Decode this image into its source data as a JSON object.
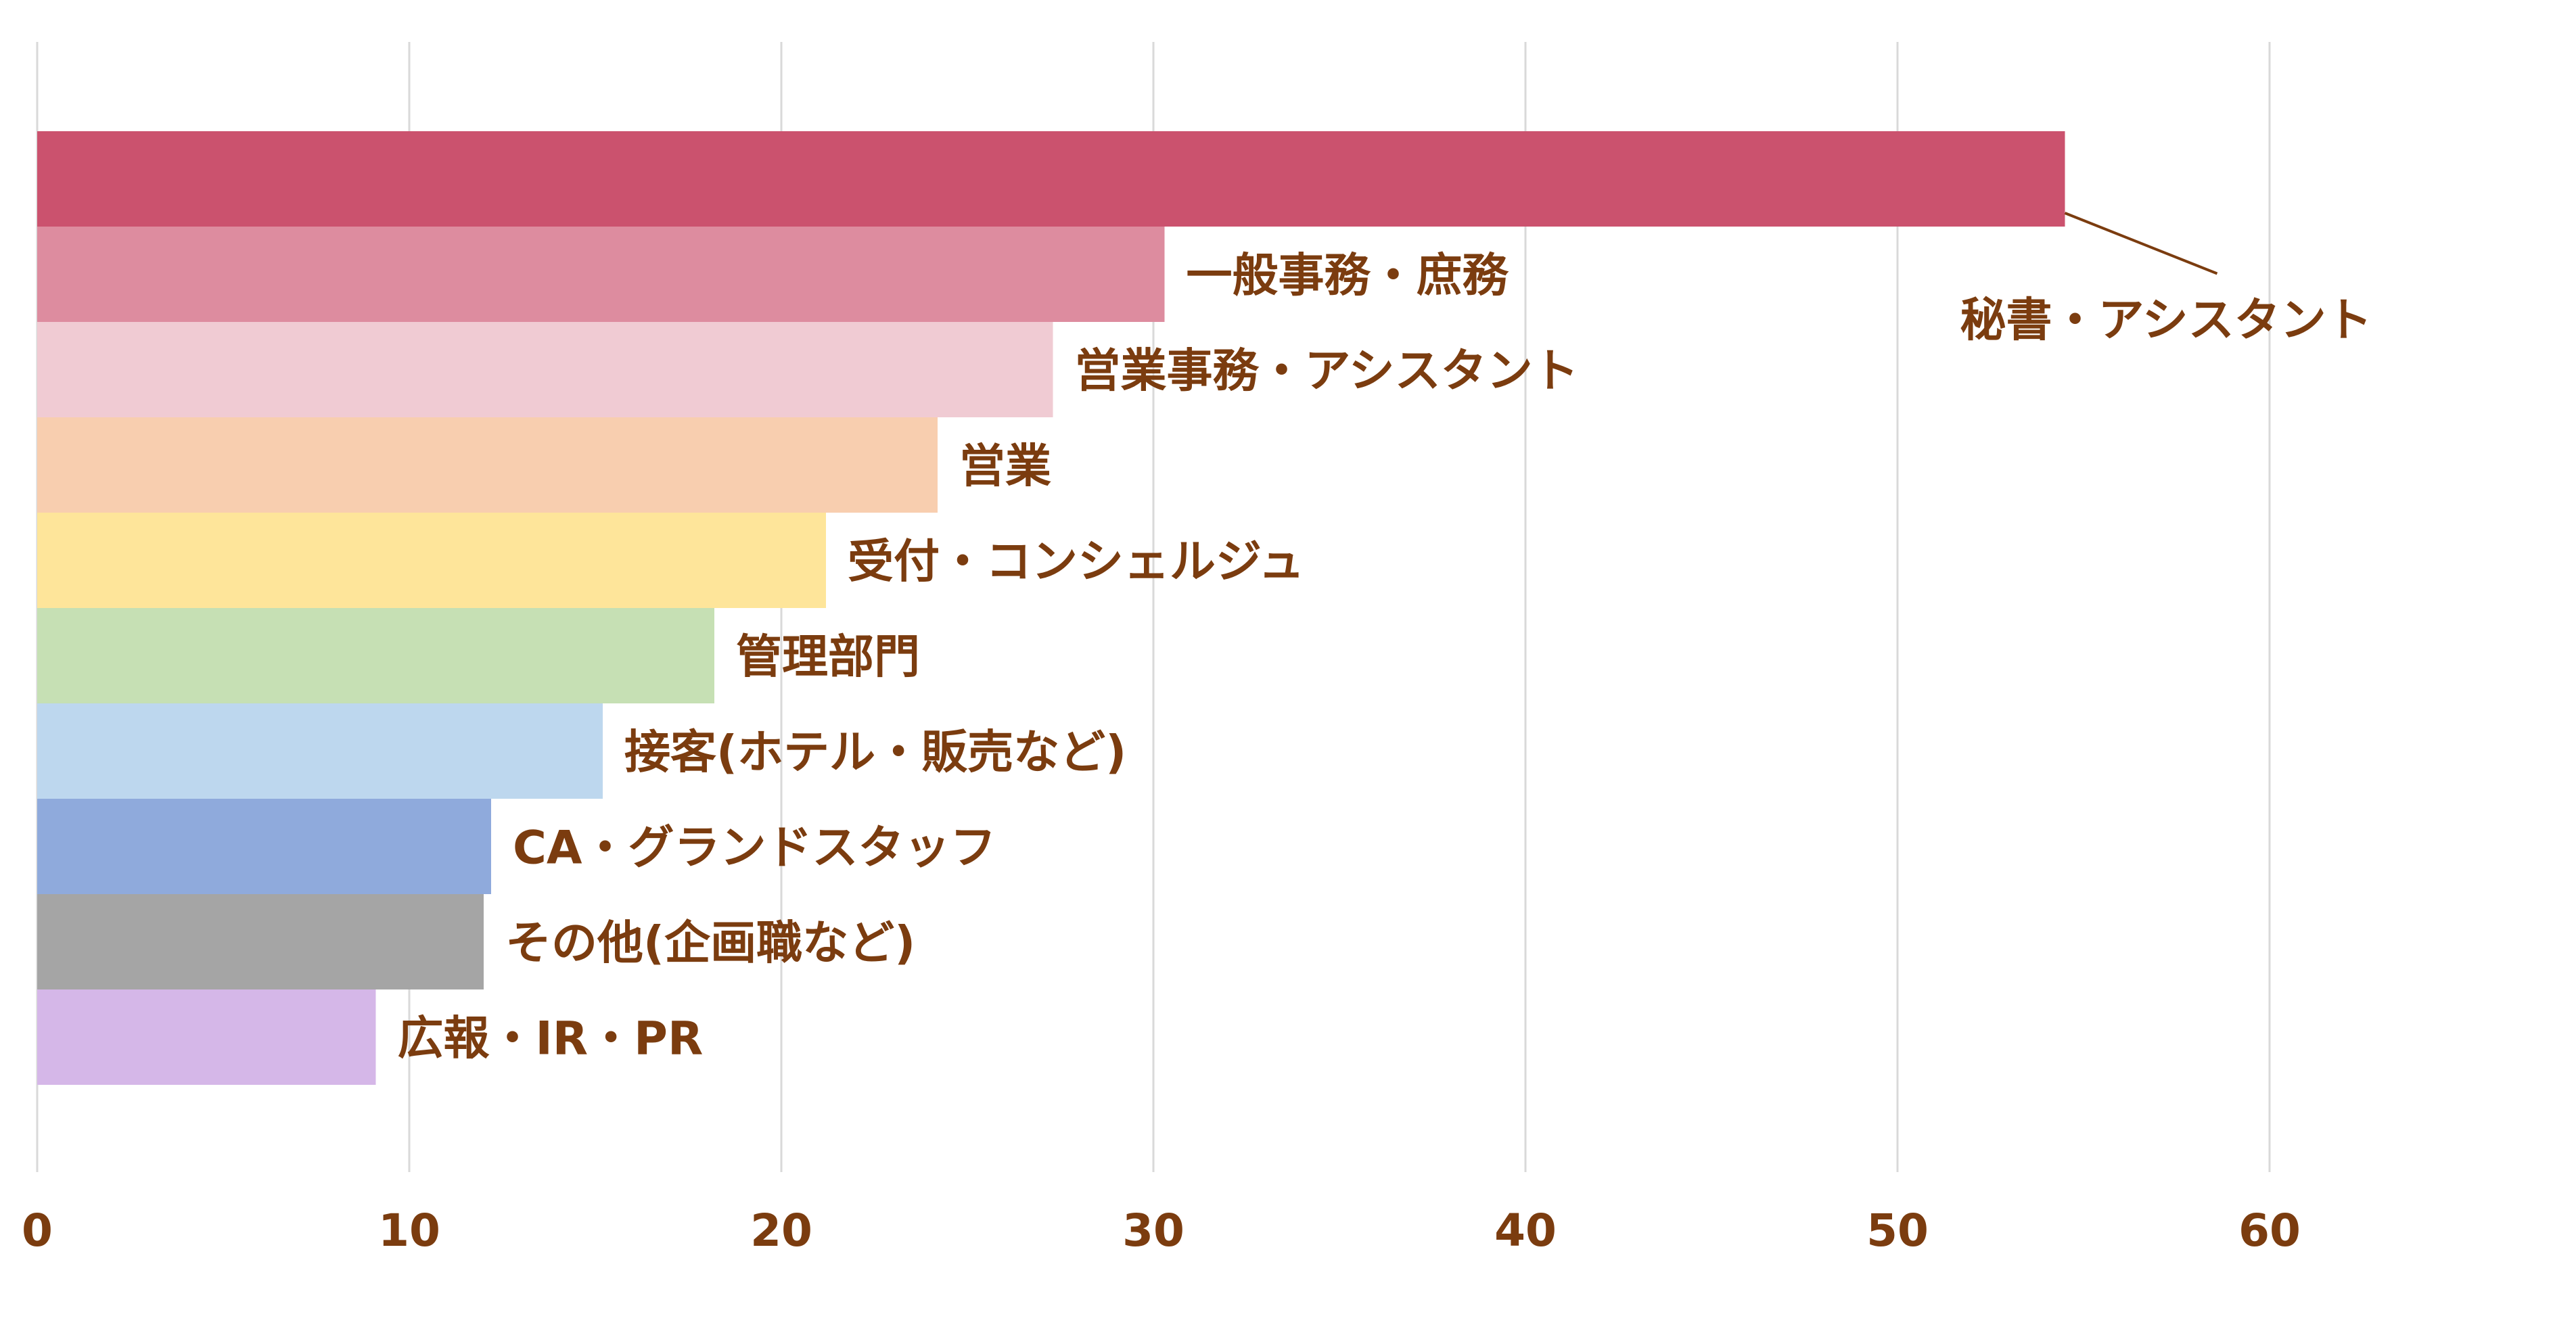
{
  "chart_data": {
    "type": "bar",
    "orientation": "horizontal",
    "categories": [
      "秘書・アシスタント",
      "一般事務・庶務",
      "営業事務・アシスタント",
      "営業",
      "受付・コンシェルジュ",
      "管理部門",
      "接客(ホテル・販売など)",
      "CA・グランドスタッフ",
      "その他(企画職など)",
      "広報・IR・PR"
    ],
    "values": [
      54.5,
      30.3,
      27.3,
      24.2,
      21.2,
      18.2,
      15.2,
      12.2,
      12.0,
      9.1
    ],
    "colors": [
      "#cb526e",
      "#dd8c9f",
      "#f0cbd3",
      "#f8ceaf",
      "#fee59a",
      "#c6e0b4",
      "#bdd7ee",
      "#8faadc",
      "#a5a5a5",
      "#d5b7e8"
    ],
    "xlim": [
      0,
      68
    ],
    "xticks": [
      "0",
      "10",
      "20",
      "30",
      "40",
      "50",
      "60"
    ],
    "grid": true,
    "legend": "none",
    "label_color": "#7b3c0f",
    "grid_color": "#d9d9d9"
  }
}
